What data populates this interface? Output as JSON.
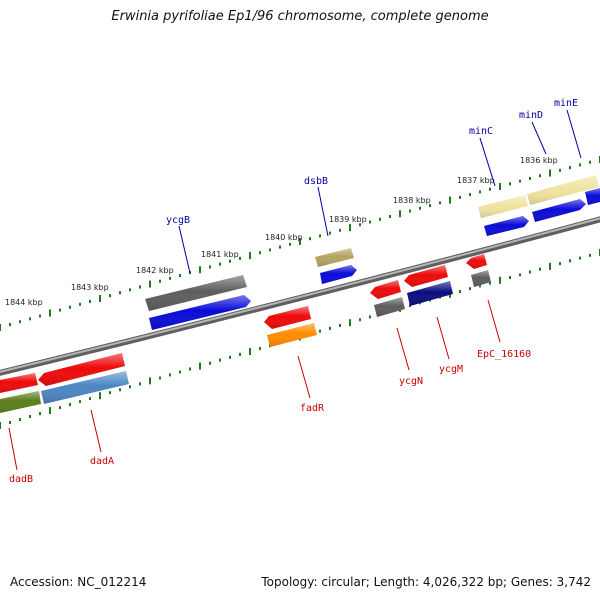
{
  "title": "Erwinia pyrifoliae Ep1/96 chromosome, complete genome",
  "accession": "Accession: NC_012214",
  "summary": "Topology: circular; Length: 4,026,322 bp; Genes: 3,742",
  "colors": {
    "backbone": "#8a8a8a",
    "ruler_ticks": "#1f7a1f",
    "forward_label": "#00009c",
    "reverse_label": "#cc0000"
  },
  "ruler": [
    "1844 kbp",
    "1843 kbp",
    "1842 kbp",
    "1841 kbp",
    "1840 kbp",
    "1839 kbp",
    "1838 kbp",
    "1837 kbp",
    "1836 kbp"
  ],
  "forward_genes": [
    "ycgB",
    "dsbB",
    "minC",
    "minD",
    "minE"
  ],
  "reverse_genes": [
    "dadB",
    "dadA",
    "fadR",
    "ycgN",
    "ycgM",
    "EpC_16160"
  ]
}
